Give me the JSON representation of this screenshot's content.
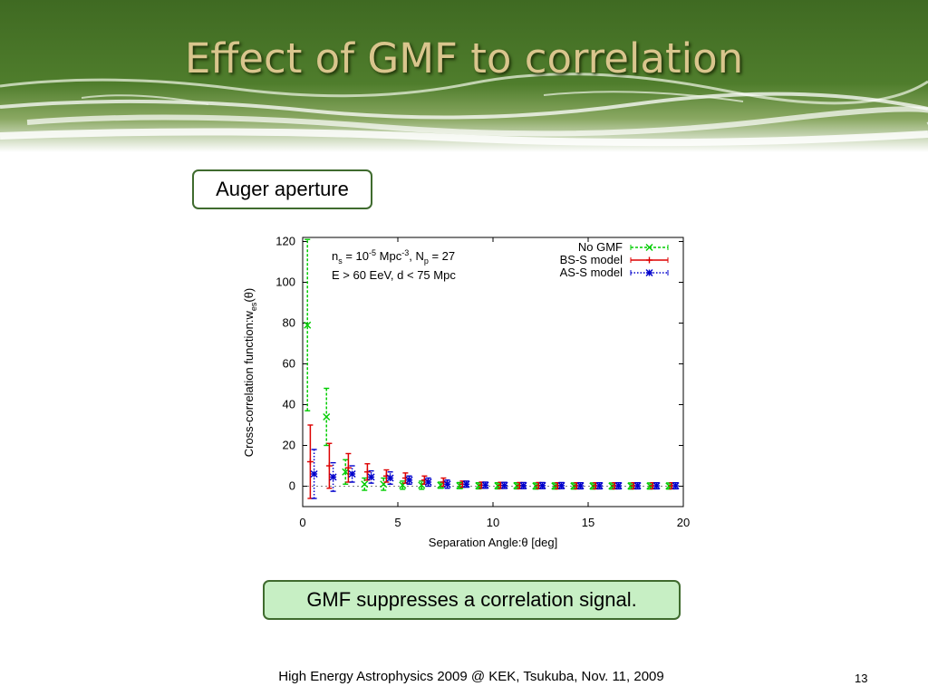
{
  "slide": {
    "title": "Effect of GMF to correlation",
    "aperture_label": "Auger aperture",
    "note": "GMF suppresses a correlation signal.",
    "footer": "High Energy Astrophysics 2009 @ KEK, Tsukuba, Nov. 11, 2009",
    "page_number": "13"
  },
  "chart_data": {
    "type": "scatter",
    "xlabel": "Separation Angle:θ [deg]",
    "ylabel": "Cross-correlation function:w",
    "ylabel_sub": "es",
    "ylabel_tail": "(θ)",
    "xlim": [
      0,
      20
    ],
    "ylim": [
      -10,
      122
    ],
    "xticks": [
      0,
      5,
      10,
      15,
      20
    ],
    "yticks": [
      0,
      20,
      40,
      60,
      80,
      100,
      120
    ],
    "grid": false,
    "legend_position": "top-right",
    "annotation_line1": {
      "a": "n",
      "a_sub": "s",
      "b": " = 10",
      "b_sup": "-5",
      "c": " Mpc",
      "c_sup": "-3",
      "d": ", N",
      "d_sub": "p",
      "e": " = 27"
    },
    "annotation_line2": "E > 60 EeV, d < 75 Mpc",
    "series": [
      {
        "name": "No GMF",
        "color": "#00cc00",
        "marker": "x",
        "x": [
          0.25,
          1.25,
          2.25,
          3.25,
          4.25,
          5.25,
          6.25,
          7.25,
          8.25,
          9.25,
          10.25,
          11.25,
          12.25,
          13.25,
          14.25,
          15.25,
          16.25,
          17.25,
          18.25,
          19.25
        ],
        "y": [
          79,
          34,
          7,
          1,
          1,
          0.5,
          0.5,
          0.5,
          0.3,
          0.2,
          0.2,
          0.2,
          0.1,
          0.1,
          0.1,
          0.1,
          0.1,
          0.1,
          0.1,
          0.1
        ],
        "err": [
          42,
          14,
          6,
          3,
          3,
          2,
          2,
          1.5,
          1.5,
          1.5,
          1.5,
          1.5,
          1.5,
          1.5,
          1.5,
          1.5,
          1.5,
          1.5,
          1.5,
          1.5
        ]
      },
      {
        "name": "BS-S model",
        "color": "#dd0000",
        "marker": "+",
        "x": [
          0.4,
          1.4,
          2.4,
          3.4,
          4.4,
          5.4,
          6.4,
          7.4,
          8.4,
          9.4,
          10.4,
          11.4,
          12.4,
          13.4,
          14.4,
          15.4,
          16.4,
          17.4,
          18.4,
          19.4
        ],
        "y": [
          12,
          10,
          9,
          7,
          5,
          4,
          3,
          2,
          1,
          0.5,
          0.4,
          0.3,
          0.3,
          0.2,
          0.2,
          0.2,
          0.2,
          0.2,
          0.2,
          0.2
        ],
        "err": [
          18,
          11,
          7,
          4,
          3,
          2.5,
          2,
          2,
          1.5,
          1.5,
          1.5,
          1.5,
          1.5,
          1.5,
          1.5,
          1.5,
          1.5,
          1.5,
          1.5,
          1.5
        ]
      },
      {
        "name": "AS-S model",
        "color": "#0000cc",
        "marker": "*",
        "x": [
          0.6,
          1.6,
          2.6,
          3.6,
          4.6,
          5.6,
          6.6,
          7.6,
          8.6,
          9.6,
          10.6,
          11.6,
          12.6,
          13.6,
          14.6,
          15.6,
          16.6,
          17.6,
          18.6,
          19.6
        ],
        "y": [
          6,
          4.5,
          6,
          4.5,
          4,
          3,
          2,
          1,
          1,
          0.5,
          0.4,
          0.3,
          0.3,
          0.3,
          0.2,
          0.2,
          0.2,
          0.2,
          0.2,
          0.2
        ],
        "err": [
          12,
          7,
          4,
          3,
          3,
          2,
          2,
          2,
          1.5,
          1.5,
          1.5,
          1.5,
          1.5,
          1.5,
          1.5,
          1.5,
          1.5,
          1.5,
          1.5,
          1.5
        ]
      }
    ]
  }
}
